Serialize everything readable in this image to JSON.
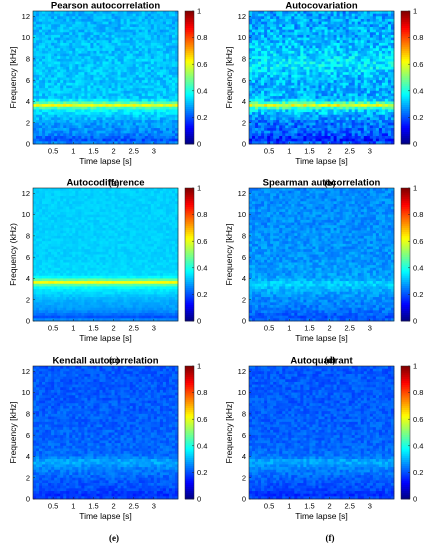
{
  "figure": {
    "colormap": "jet",
    "panels": [
      {
        "caption": "(a)"
      },
      {
        "caption": "(b)"
      },
      {
        "caption": "(c)"
      },
      {
        "caption": "(d)"
      },
      {
        "caption": "(e)"
      },
      {
        "caption": "(f)"
      }
    ]
  },
  "chart_data": [
    {
      "type": "heatmap",
      "title": "Pearson autocorrelation",
      "xlabel": "Time lapse [s]",
      "ylabel": "Frequency [kHz]",
      "xlim": [
        0,
        3.6
      ],
      "ylim": [
        0,
        12.5
      ],
      "xticks": [
        0.5,
        1,
        1.5,
        2,
        2.5,
        3
      ],
      "xtick_labels": [
        "0.5",
        "1",
        "1.5",
        "2",
        "2.5",
        "3"
      ],
      "yticks": [
        0,
        2,
        4,
        6,
        8,
        10,
        12
      ],
      "ytick_labels": [
        "0",
        "2",
        "4",
        "6",
        "8",
        "10",
        "12"
      ],
      "colorbar": {
        "range": [
          0,
          1
        ],
        "ticks": [
          "0",
          "0.2",
          "0.4",
          "0.6",
          "0.8",
          "1"
        ]
      },
      "value_profile_by_frequency_khz": {
        "freqs": [
          0,
          0.3,
          1,
          2,
          3,
          3.3,
          3.6,
          3.8,
          4.2,
          6,
          8,
          10,
          12.5
        ],
        "values": [
          0.28,
          0.2,
          0.26,
          0.28,
          0.35,
          0.38,
          0.62,
          0.5,
          0.32,
          0.32,
          0.32,
          0.31,
          0.3
        ]
      },
      "noise": 0.04
    },
    {
      "type": "heatmap",
      "title": "Autocovariation",
      "xlabel": "Time lapse [s]",
      "ylabel": "Frequency [kHz]",
      "xlim": [
        0,
        3.6
      ],
      "ylim": [
        0,
        12.5
      ],
      "xticks": [
        0.5,
        1,
        1.5,
        2,
        2.5,
        3
      ],
      "xtick_labels": [
        "0.5",
        "1",
        "1.5",
        "2",
        "2.5",
        "3"
      ],
      "yticks": [
        0,
        2,
        4,
        6,
        8,
        10,
        12
      ],
      "ytick_labels": [
        "0",
        "2",
        "4",
        "6",
        "8",
        "10",
        "12"
      ],
      "colorbar": {
        "range": [
          0,
          1
        ],
        "ticks": [
          "0",
          "0.2",
          "0.4",
          "0.6",
          "0.8",
          "1"
        ]
      },
      "value_profile_by_frequency_khz": {
        "freqs": [
          0,
          0.3,
          1,
          2,
          3,
          3.3,
          3.6,
          3.8,
          4.2,
          6,
          7.5,
          8.5,
          10,
          12.5
        ],
        "values": [
          0.25,
          0.15,
          0.22,
          0.24,
          0.32,
          0.36,
          0.62,
          0.48,
          0.3,
          0.3,
          0.36,
          0.33,
          0.3,
          0.28
        ]
      },
      "noise": 0.07
    },
    {
      "type": "heatmap",
      "title": "Autocodifference",
      "xlabel": "Time lapse [s]",
      "ylabel": "Frequency (kHz)",
      "xlim": [
        0,
        3.6
      ],
      "ylim": [
        0,
        12.5
      ],
      "xticks": [
        0.5,
        1,
        1.5,
        2,
        2.5,
        3
      ],
      "xtick_labels": [
        "0.5",
        "1",
        "1.5",
        "2",
        "2.5",
        "3"
      ],
      "yticks": [
        0,
        2,
        4,
        6,
        8,
        10,
        12
      ],
      "ytick_labels": [
        "0",
        "2",
        "4",
        "6",
        "8",
        "10",
        "12"
      ],
      "colorbar": {
        "range": [
          0,
          1
        ],
        "ticks": [
          "0",
          "0.2",
          "0.4",
          "0.6",
          "0.8",
          "1"
        ]
      },
      "value_profile_by_frequency_khz": {
        "freqs": [
          0,
          0.3,
          1,
          2,
          3,
          3.3,
          3.6,
          3.8,
          4.2,
          6,
          8,
          12.5
        ],
        "values": [
          0.3,
          0.2,
          0.27,
          0.3,
          0.36,
          0.4,
          0.64,
          0.5,
          0.34,
          0.33,
          0.33,
          0.33
        ]
      },
      "noise": 0.015
    },
    {
      "type": "heatmap",
      "title": "Spearman autocorrelation",
      "xlabel": "Time lapse [s]",
      "ylabel": "Frequency [kHz]",
      "xlim": [
        0,
        3.6
      ],
      "ylim": [
        0,
        12.5
      ],
      "xticks": [
        0.5,
        1,
        1.5,
        2,
        2.5,
        3
      ],
      "xtick_labels": [
        "0.5",
        "1",
        "1.5",
        "2",
        "2.5",
        "3"
      ],
      "yticks": [
        0,
        2,
        4,
        6,
        8,
        10,
        12
      ],
      "ytick_labels": [
        "0",
        "2",
        "4",
        "6",
        "8",
        "10",
        "12"
      ],
      "colorbar": {
        "range": [
          0,
          1
        ],
        "ticks": [
          "0",
          "0.2",
          "0.4",
          "0.6",
          "0.8",
          "1"
        ]
      },
      "value_profile_by_frequency_khz": {
        "freqs": [
          0,
          0.3,
          1,
          2,
          3,
          3.5,
          3.8,
          4.2,
          6,
          12.5
        ],
        "values": [
          0.24,
          0.2,
          0.24,
          0.26,
          0.3,
          0.34,
          0.3,
          0.28,
          0.27,
          0.26
        ]
      },
      "noise": 0.035
    },
    {
      "type": "heatmap",
      "title": "Kendall autocorrelation",
      "xlabel": "Time lapse [s]",
      "ylabel": "Frequency [kHz]",
      "xlim": [
        0,
        3.6
      ],
      "ylim": [
        0,
        12.5
      ],
      "xticks": [
        0.5,
        1,
        1.5,
        2,
        2.5,
        3
      ],
      "xtick_labels": [
        "0.5",
        "1",
        "1.5",
        "2",
        "2.5",
        "3"
      ],
      "yticks": [
        0,
        2,
        4,
        6,
        8,
        10,
        12
      ],
      "ytick_labels": [
        "0",
        "2",
        "4",
        "6",
        "8",
        "10",
        "12"
      ],
      "colorbar": {
        "range": [
          0,
          1
        ],
        "ticks": [
          "0",
          "0.2",
          "0.4",
          "0.6",
          "0.8",
          "1"
        ]
      },
      "value_profile_by_frequency_khz": {
        "freqs": [
          0,
          0.3,
          1,
          2,
          3,
          3.5,
          3.8,
          4.2,
          6,
          12.5
        ],
        "values": [
          0.2,
          0.17,
          0.2,
          0.22,
          0.26,
          0.3,
          0.26,
          0.23,
          0.22,
          0.21
        ]
      },
      "noise": 0.03
    },
    {
      "type": "heatmap",
      "title": "Autoquadrant",
      "xlabel": "Time lapse [s]",
      "ylabel": "Frequency [kHz]",
      "xlim": [
        0,
        3.6
      ],
      "ylim": [
        0,
        12.5
      ],
      "xticks": [
        0.5,
        1,
        1.5,
        2,
        2.5,
        3
      ],
      "xtick_labels": [
        "0.5",
        "1",
        "1.5",
        "2",
        "2.5",
        "3"
      ],
      "yticks": [
        0,
        2,
        4,
        6,
        8,
        10,
        12
      ],
      "ytick_labels": [
        "0",
        "2",
        "4",
        "6",
        "8",
        "10",
        "12"
      ],
      "colorbar": {
        "range": [
          0,
          1
        ],
        "ticks": [
          "0",
          "0.2",
          "0.4",
          "0.6",
          "0.8",
          "1"
        ]
      },
      "value_profile_by_frequency_khz": {
        "freqs": [
          0,
          0.3,
          1,
          2,
          3,
          3.5,
          3.8,
          4.2,
          6,
          12.5
        ],
        "values": [
          0.2,
          0.17,
          0.2,
          0.22,
          0.26,
          0.3,
          0.26,
          0.23,
          0.22,
          0.21
        ]
      },
      "noise": 0.03
    }
  ]
}
